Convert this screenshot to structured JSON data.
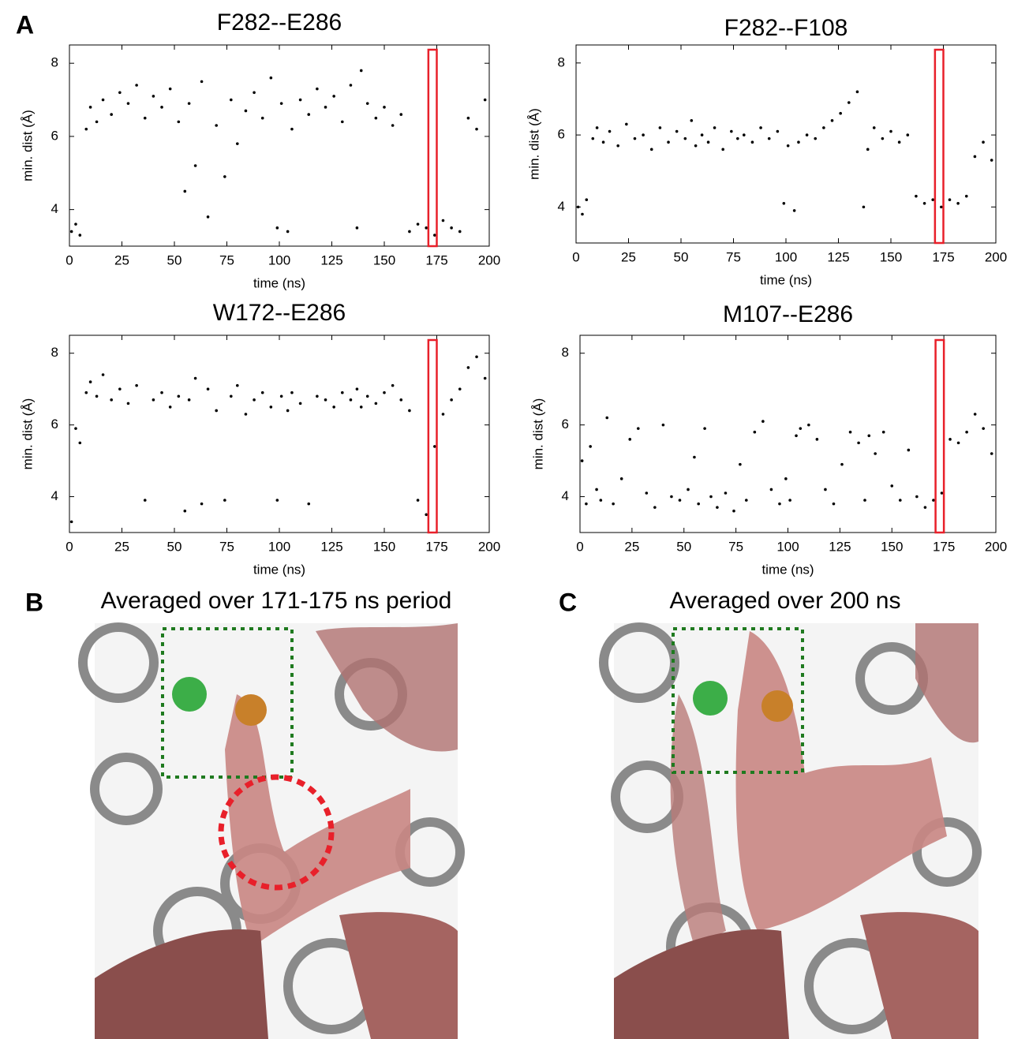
{
  "panel_labels": [
    "A",
    "B",
    "C"
  ],
  "images": [
    {
      "title": "Averaged over 171-175 ns period"
    },
    {
      "title": "Averaged over 200 ns"
    }
  ],
  "chart_data": [
    {
      "type": "scatter",
      "title": "F282--E286",
      "x_label": "time (ns)",
      "y_label": "min. dist (Å)",
      "color": "#000000",
      "highlight_x": [
        171,
        175
      ],
      "highlight_color": "#e8202a",
      "xlim": [
        0,
        200
      ],
      "ylim": [
        3,
        8.5
      ],
      "xticks": [
        0,
        25,
        50,
        75,
        100,
        125,
        150,
        175,
        200
      ],
      "yticks": [
        4,
        6,
        8
      ],
      "x": [
        1,
        3,
        5,
        8,
        10,
        13,
        16,
        20,
        24,
        28,
        32,
        36,
        40,
        44,
        48,
        52,
        55,
        57,
        60,
        63,
        66,
        70,
        74,
        77,
        80,
        84,
        88,
        92,
        96,
        99,
        101,
        104,
        106,
        110,
        114,
        118,
        122,
        126,
        130,
        134,
        137,
        139,
        142,
        146,
        150,
        154,
        158,
        162,
        166,
        170,
        174,
        178,
        182,
        186,
        190,
        194,
        198
      ],
      "values": [
        3.4,
        3.6,
        3.3,
        6.2,
        6.8,
        6.4,
        7.0,
        6.6,
        7.2,
        6.9,
        7.4,
        6.5,
        7.1,
        6.8,
        7.3,
        6.4,
        4.5,
        6.9,
        5.2,
        7.5,
        3.8,
        6.3,
        4.9,
        7.0,
        5.8,
        6.7,
        7.2,
        6.5,
        7.6,
        3.5,
        6.9,
        3.4,
        6.2,
        7.0,
        6.6,
        7.3,
        6.8,
        7.1,
        6.4,
        7.4,
        3.5,
        7.8,
        6.9,
        6.5,
        6.8,
        6.3,
        6.6,
        3.4,
        3.6,
        3.5,
        3.3,
        3.7,
        3.5,
        3.4,
        6.5,
        6.2,
        7.0
      ]
    },
    {
      "type": "scatter",
      "title": "F282--F108",
      "x_label": "time (ns)",
      "y_label": "min. dist (Å)",
      "color": "#000000",
      "highlight_x": [
        171,
        175
      ],
      "highlight_color": "#e8202a",
      "xlim": [
        0,
        200
      ],
      "ylim": [
        3,
        8.5
      ],
      "xticks": [
        0,
        25,
        50,
        75,
        100,
        125,
        150,
        175,
        200
      ],
      "yticks": [
        4,
        6,
        8
      ],
      "x": [
        1,
        3,
        5,
        8,
        10,
        13,
        16,
        20,
        24,
        28,
        32,
        36,
        40,
        44,
        48,
        52,
        55,
        57,
        60,
        63,
        66,
        70,
        74,
        77,
        80,
        84,
        88,
        92,
        96,
        99,
        101,
        104,
        106,
        110,
        114,
        118,
        122,
        126,
        130,
        134,
        137,
        139,
        142,
        146,
        150,
        154,
        158,
        162,
        166,
        170,
        174,
        178,
        182,
        186,
        190,
        194,
        198
      ],
      "values": [
        4.0,
        3.8,
        4.2,
        5.9,
        6.2,
        5.8,
        6.1,
        5.7,
        6.3,
        5.9,
        6.0,
        5.6,
        6.2,
        5.8,
        6.1,
        5.9,
        6.4,
        5.7,
        6.0,
        5.8,
        6.2,
        5.6,
        6.1,
        5.9,
        6.0,
        5.8,
        6.2,
        5.9,
        6.1,
        4.1,
        5.7,
        3.9,
        5.8,
        6.0,
        5.9,
        6.2,
        6.4,
        6.6,
        6.9,
        7.2,
        4.0,
        5.6,
        6.2,
        5.9,
        6.1,
        5.8,
        6.0,
        4.3,
        4.1,
        4.2,
        4.0,
        4.2,
        4.1,
        4.3,
        5.4,
        5.8,
        5.3
      ]
    },
    {
      "type": "scatter",
      "title": "W172--E286",
      "x_label": "time (ns)",
      "y_label": "min. dist (Å)",
      "color": "#000000",
      "highlight_x": [
        171,
        175
      ],
      "highlight_color": "#e8202a",
      "xlim": [
        0,
        200
      ],
      "ylim": [
        3,
        8.5
      ],
      "xticks": [
        0,
        25,
        50,
        75,
        100,
        125,
        150,
        175,
        200
      ],
      "yticks": [
        4,
        6,
        8
      ],
      "x": [
        1,
        3,
        5,
        8,
        10,
        13,
        16,
        20,
        24,
        28,
        32,
        36,
        40,
        44,
        48,
        52,
        55,
        57,
        60,
        63,
        66,
        70,
        74,
        77,
        80,
        84,
        88,
        92,
        96,
        99,
        101,
        104,
        106,
        110,
        114,
        118,
        122,
        126,
        130,
        134,
        137,
        139,
        142,
        146,
        150,
        154,
        158,
        162,
        166,
        170,
        174,
        178,
        182,
        186,
        190,
        194,
        198
      ],
      "values": [
        3.3,
        5.9,
        5.5,
        6.9,
        7.2,
        6.8,
        7.4,
        6.7,
        7.0,
        6.6,
        7.1,
        3.9,
        6.7,
        6.9,
        6.5,
        6.8,
        3.6,
        6.7,
        7.3,
        3.8,
        7.0,
        6.4,
        3.9,
        6.8,
        7.1,
        6.3,
        6.7,
        6.9,
        6.5,
        3.9,
        6.8,
        6.4,
        6.9,
        6.6,
        3.8,
        6.8,
        6.7,
        6.5,
        6.9,
        6.7,
        7.0,
        6.5,
        6.8,
        6.6,
        6.9,
        7.1,
        6.7,
        6.4,
        3.9,
        3.5,
        5.4,
        6.3,
        6.7,
        7.0,
        7.6,
        7.9,
        7.3
      ]
    },
    {
      "type": "scatter",
      "title": "M107--E286",
      "x_label": "time (ns)",
      "y_label": "min. dist (Å)",
      "color": "#000000",
      "highlight_x": [
        171,
        175
      ],
      "highlight_color": "#e8202a",
      "xlim": [
        0,
        200
      ],
      "ylim": [
        3,
        8.5
      ],
      "xticks": [
        0,
        25,
        50,
        75,
        100,
        125,
        150,
        175,
        200
      ],
      "yticks": [
        4,
        6,
        8
      ],
      "x": [
        1,
        3,
        5,
        8,
        10,
        13,
        16,
        20,
        24,
        28,
        32,
        36,
        40,
        44,
        48,
        52,
        55,
        57,
        60,
        63,
        66,
        70,
        74,
        77,
        80,
        84,
        88,
        92,
        96,
        99,
        101,
        104,
        106,
        110,
        114,
        118,
        122,
        126,
        130,
        134,
        137,
        139,
        142,
        146,
        150,
        154,
        158,
        162,
        166,
        170,
        174,
        178,
        182,
        186,
        190,
        194,
        198
      ],
      "values": [
        5.0,
        3.8,
        5.4,
        4.2,
        3.9,
        6.2,
        3.8,
        4.5,
        5.6,
        5.9,
        4.1,
        3.7,
        6.0,
        4.0,
        3.9,
        4.2,
        5.1,
        3.8,
        5.9,
        4.0,
        3.7,
        4.1,
        3.6,
        4.9,
        3.9,
        5.8,
        6.1,
        4.2,
        3.8,
        4.5,
        3.9,
        5.7,
        5.9,
        6.0,
        5.6,
        4.2,
        3.8,
        4.9,
        5.8,
        5.5,
        3.9,
        5.7,
        5.2,
        5.8,
        4.3,
        3.9,
        5.3,
        4.0,
        3.7,
        3.9,
        4.1,
        5.6,
        5.5,
        5.8,
        6.3,
        5.9,
        5.2
      ]
    }
  ]
}
